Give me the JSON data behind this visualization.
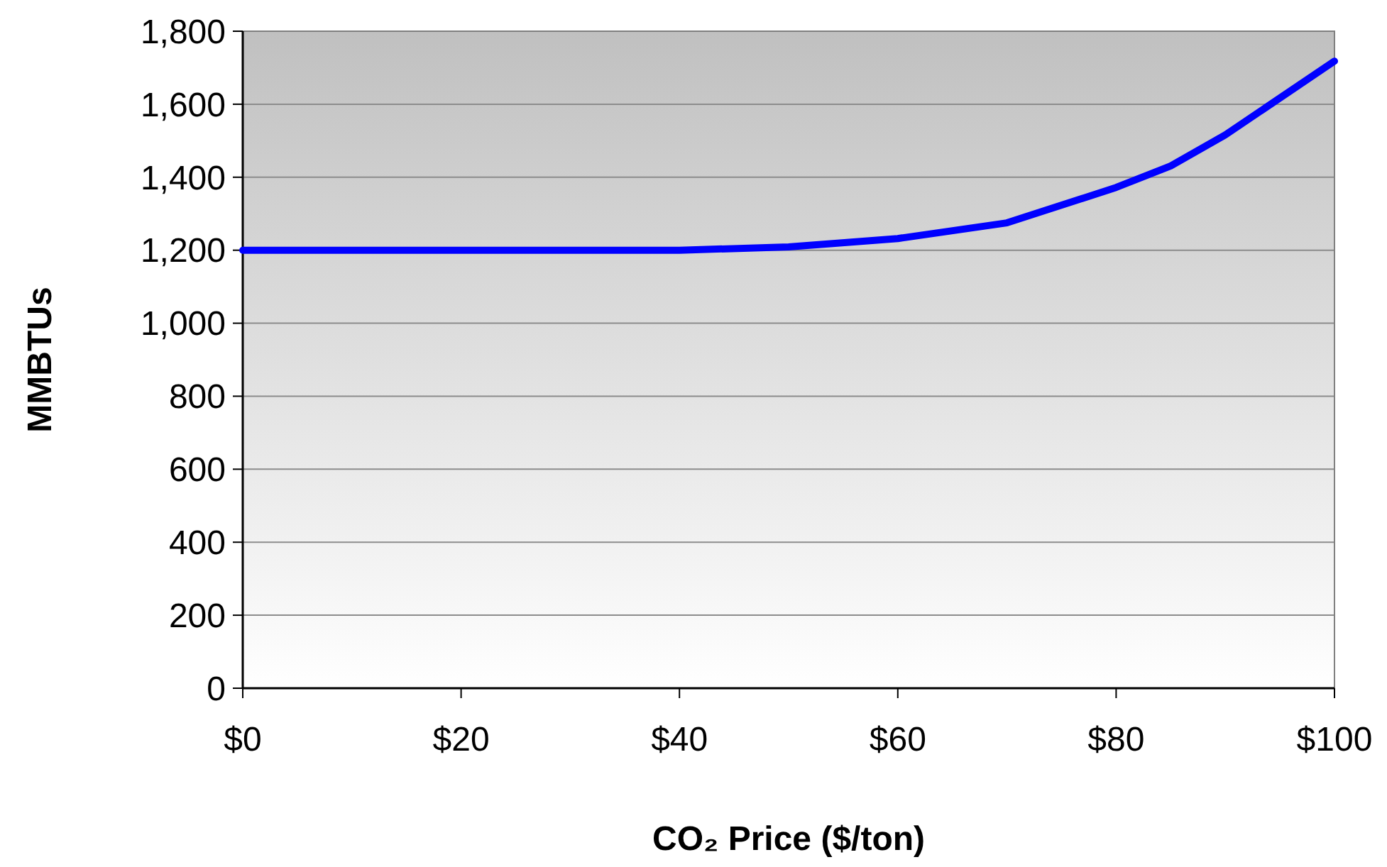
{
  "chart_data": {
    "type": "line",
    "xlabel": "CO₂ Price ($/ton)",
    "ylabel": "MMBTUs",
    "x": [
      0,
      10,
      20,
      30,
      40,
      50,
      60,
      70,
      80,
      85,
      90,
      100
    ],
    "series": [
      {
        "color": "#0000ff",
        "values": [
          1200,
          1200,
          1200,
          1200,
          1200,
          1209,
          1232,
          1275,
          1372,
          1431,
          1516,
          1718
        ]
      }
    ],
    "xlim": [
      0,
      100
    ],
    "xticks": [
      {
        "value": 0,
        "label": "$0"
      },
      {
        "value": 20,
        "label": "$20"
      },
      {
        "value": 40,
        "label": "$40"
      },
      {
        "value": 60,
        "label": "$60"
      },
      {
        "value": 80,
        "label": "$80"
      },
      {
        "value": 100,
        "label": "$100"
      }
    ],
    "ylim": [
      0,
      1800
    ],
    "yticks": [
      0,
      200,
      400,
      600,
      800,
      {
        "value": 1000,
        "label": "1,000"
      },
      {
        "value": 1200,
        "label": "1,200"
      },
      {
        "value": 1400,
        "label": "1,400"
      },
      {
        "value": 1600,
        "label": "1,600"
      },
      {
        "value": 1800,
        "label": "1,800"
      }
    ],
    "grid": "y",
    "marker": "none",
    "line_style": "solid"
  }
}
